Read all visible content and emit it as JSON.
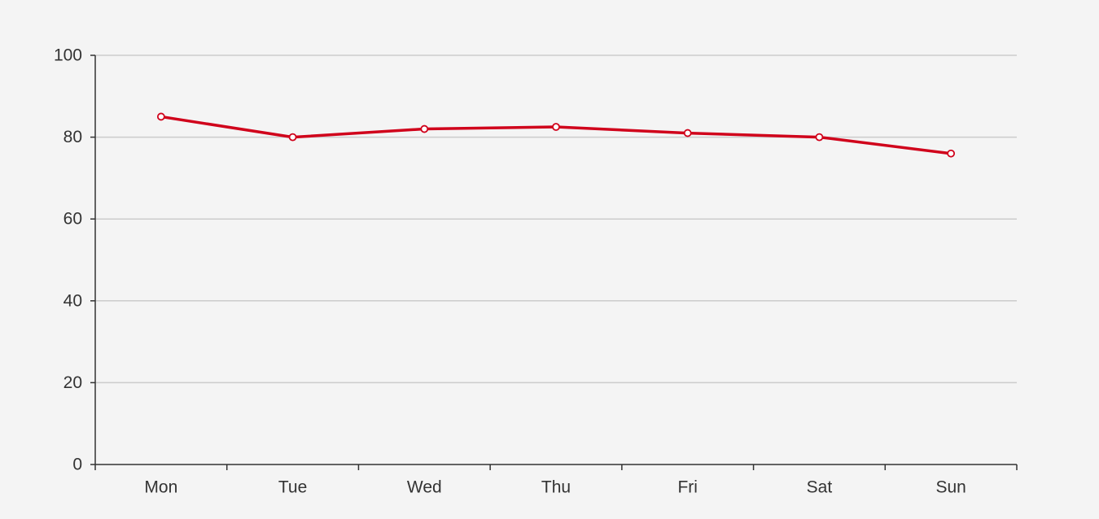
{
  "colors": {
    "background": "#f4f4f4",
    "series_line": "#d0021b",
    "marker_fill": "#ffffff",
    "axis": "#333333",
    "grid": "#cccccc",
    "label": "#333333"
  },
  "chart_data": {
    "type": "line",
    "categories": [
      "Mon",
      "Tue",
      "Wed",
      "Thu",
      "Fri",
      "Sat",
      "Sun"
    ],
    "series": [
      {
        "values": [
          85,
          80,
          82,
          82.5,
          81,
          80,
          76
        ]
      }
    ],
    "ylim": [
      0,
      100
    ],
    "y_ticks": [
      0,
      20,
      40,
      60,
      80,
      100
    ],
    "grid": true,
    "legend": "none"
  }
}
